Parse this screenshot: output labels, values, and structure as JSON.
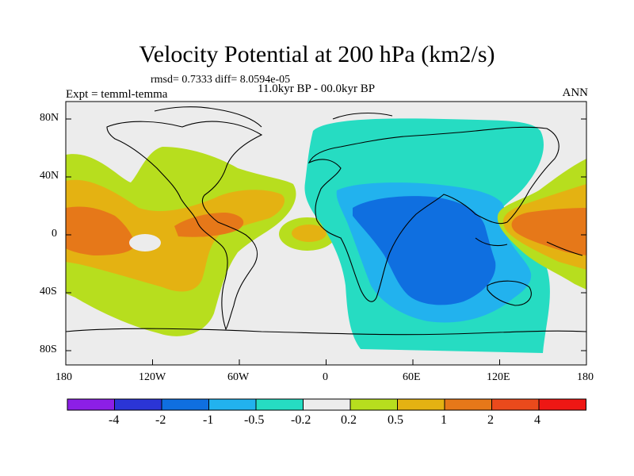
{
  "header": {
    "title": "Velocity Potential at 200 hPa (km2/s)",
    "stats": "rmsd= 0.7333 diff= 8.0594e-05",
    "experiment": "Expt = temml-temma",
    "period": "11.0kyr BP - 00.0kyr BP",
    "season": "ANN"
  },
  "axes": {
    "x_ticks": [
      "180",
      "120W",
      "60W",
      "0",
      "60E",
      "120E",
      "180"
    ],
    "y_ticks": [
      "80N",
      "40N",
      "0",
      "40S",
      "80S"
    ]
  },
  "colorbar": {
    "labels": [
      "-4",
      "-2",
      "-1",
      "-0.5",
      "-0.2",
      "0.2",
      "0.5",
      "1",
      "2",
      "4"
    ],
    "colors": [
      "#8c1fe6",
      "#2b35d6",
      "#0f6fe0",
      "#22b2ee",
      "#26dcc2",
      "#ececec",
      "#b7de1e",
      "#e4b212",
      "#e67819",
      "#ea4a1c",
      "#ee1714"
    ]
  },
  "map": {
    "background": "#ececec"
  }
}
